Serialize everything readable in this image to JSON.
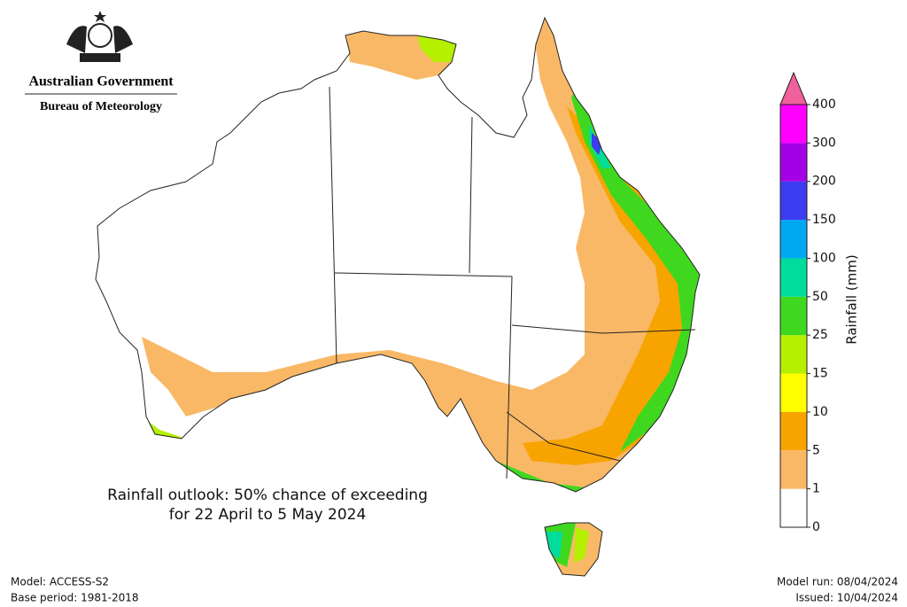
{
  "header": {
    "title": "Australian Government",
    "subtitle": "Bureau of Meteorology"
  },
  "map": {
    "title_lines": [
      "Rainfall outlook: 50% chance of exceeding",
      "for 22 April to 5 May 2024"
    ]
  },
  "legend": {
    "title": "Rainfall (mm)",
    "levels": [
      0,
      1,
      5,
      10,
      15,
      25,
      50,
      100,
      150,
      200,
      300,
      400
    ],
    "colors": [
      "#ffffff",
      "#f9b866",
      "#f7a400",
      "#ffff00",
      "#b4f000",
      "#3fd81f",
      "#00dc9c",
      "#00a8f2",
      "#3c3cf0",
      "#a400e6",
      "#ff00ff"
    ],
    "extend_color": "#f0609c"
  },
  "footer": {
    "model": "Model: ACCESS-S2",
    "base_period": "Base period: 1981-2018",
    "model_run": "Model run: 08/04/2024",
    "issued": "Issued: 10/04/2024"
  }
}
